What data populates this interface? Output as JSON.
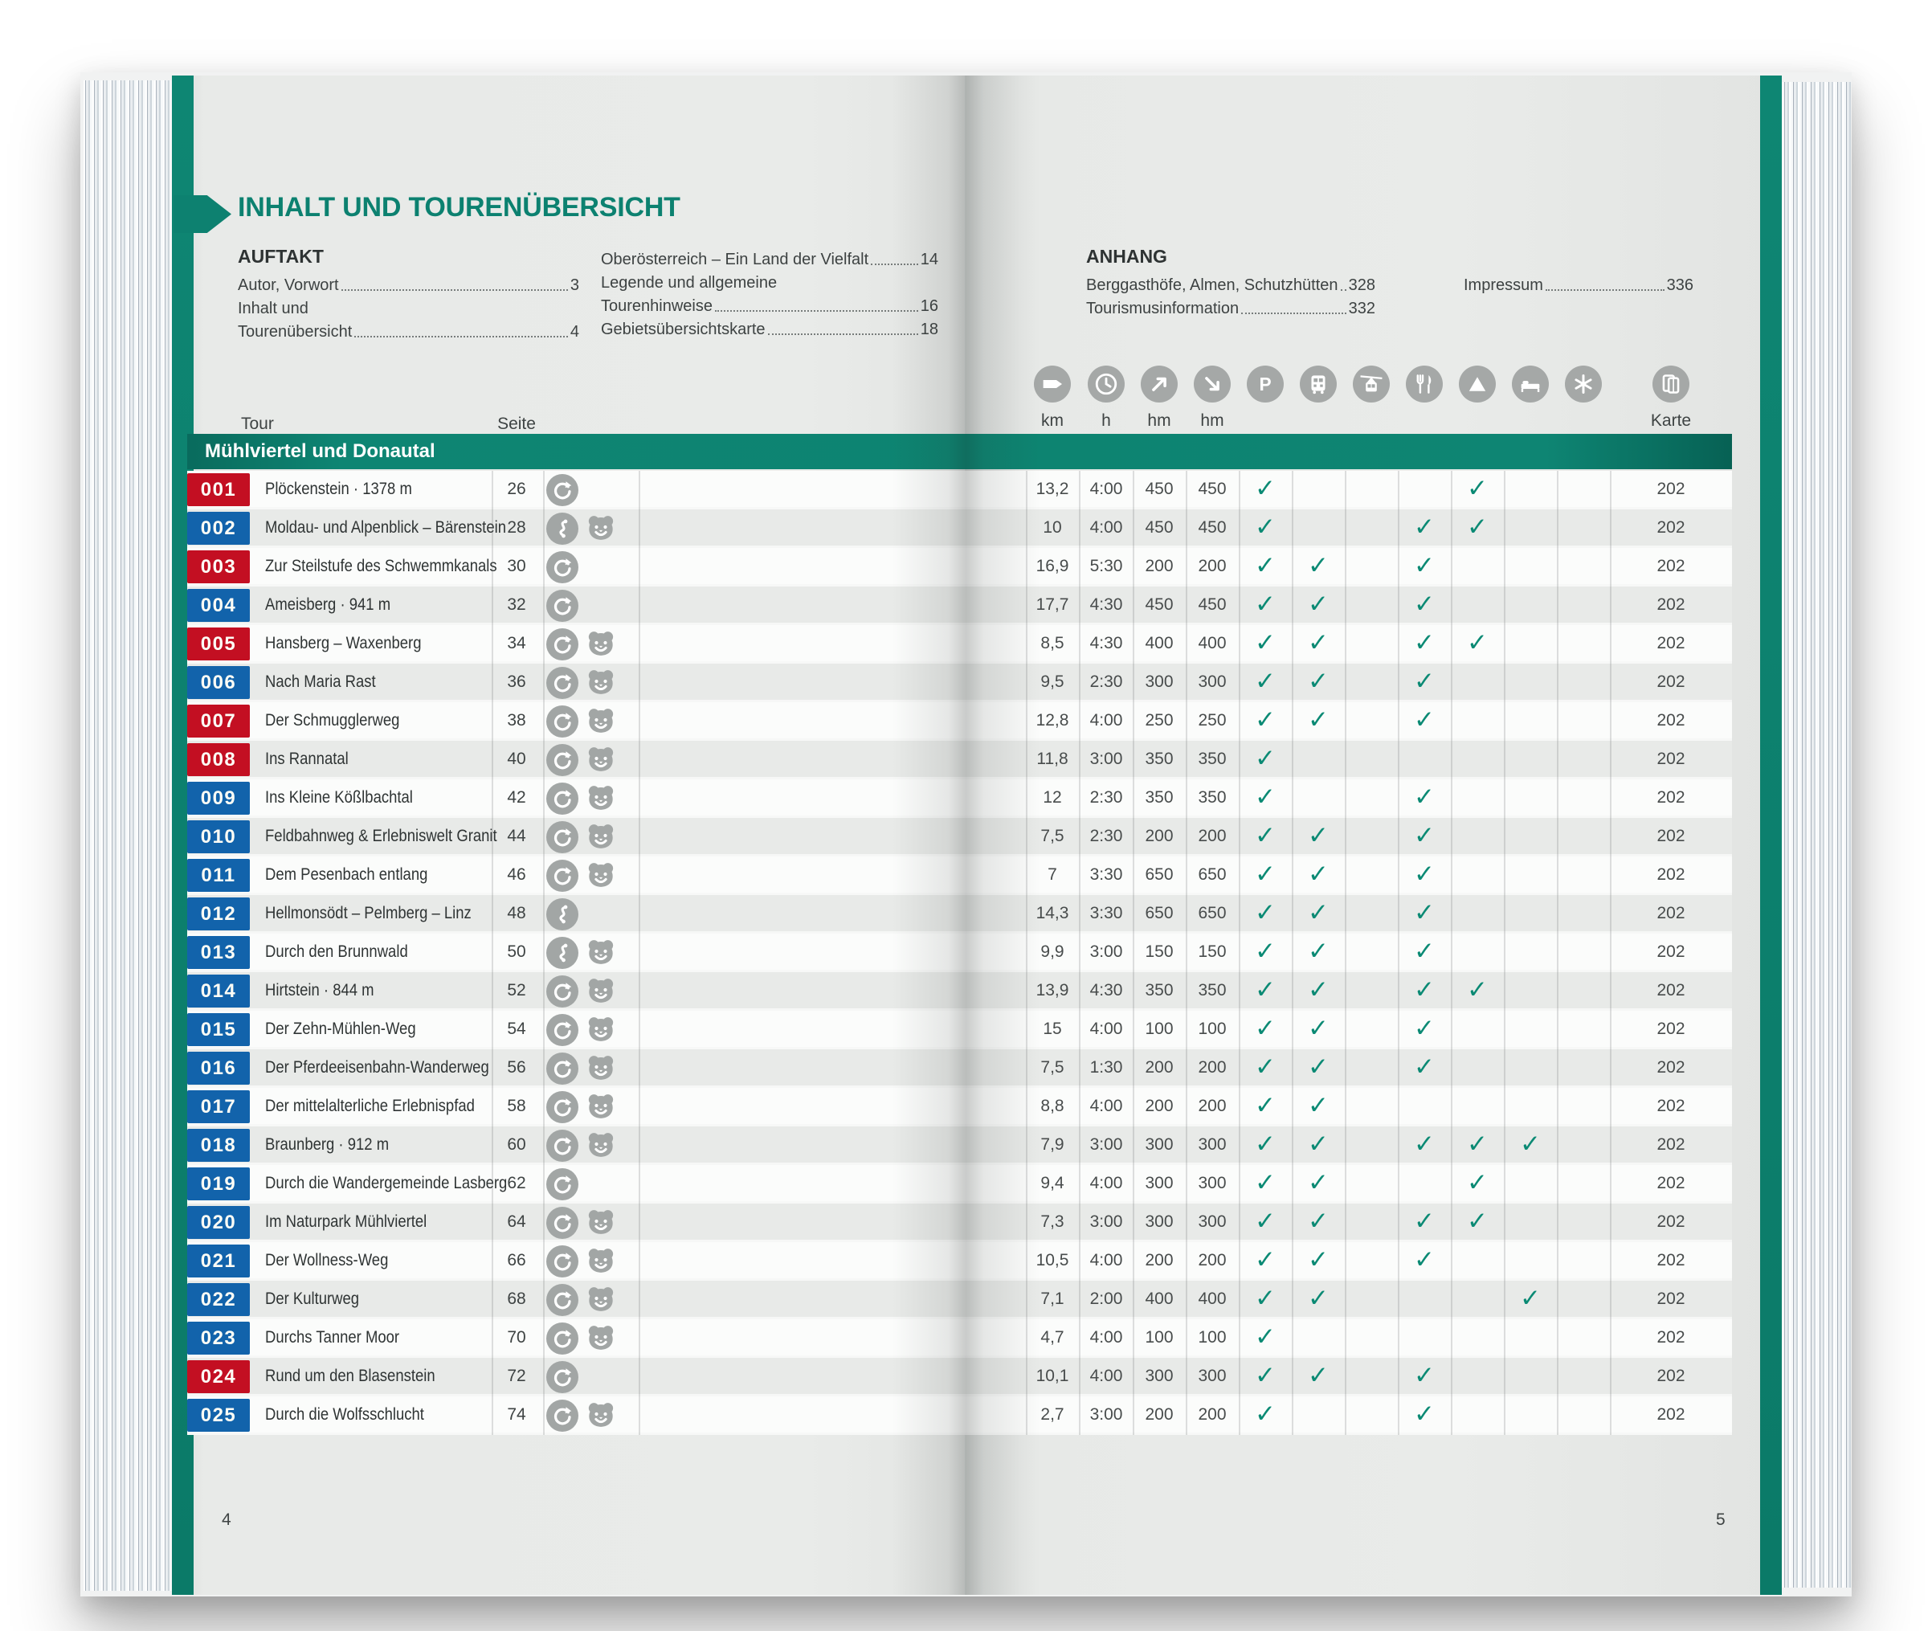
{
  "page": {
    "title": "INHALT UND TOURENÜBERSICHT",
    "left_folio": "4",
    "right_folio": "5"
  },
  "toc": {
    "auftakt": {
      "heading": "AUFTAKT",
      "col1": [
        {
          "label": "Autor, Vorwort",
          "page": "3"
        },
        {
          "label": "Inhalt und",
          "page": ""
        },
        {
          "label": "Tourenübersicht",
          "page": "4"
        }
      ],
      "col2": [
        {
          "label": "Oberösterreich – Ein Land der Vielfalt",
          "page": "14"
        },
        {
          "label": "Legende und allgemeine",
          "page": ""
        },
        {
          "label": "Tourenhinweise",
          "page": "16"
        },
        {
          "label": "Gebietsübersichtskarte",
          "page": "18"
        }
      ]
    },
    "anhang": {
      "heading": "ANHANG",
      "col1": [
        {
          "label": "Berggasthöfe, Almen, Schutzhütten",
          "page": "328"
        },
        {
          "label": "Tourismusinformation",
          "page": "332"
        }
      ],
      "col2": [
        {
          "label": "Impressum",
          "page": "336"
        }
      ]
    }
  },
  "table": {
    "tour_col_label": "Tour",
    "seite_col_label": "Seite",
    "metric_labels": [
      "km",
      "h",
      "hm",
      "hm"
    ],
    "karte_label": "Karte",
    "header_icons": [
      "signpost",
      "clock",
      "arrow-up",
      "arrow-down",
      "parking",
      "bus",
      "cablecar",
      "restaurant",
      "peak",
      "bed",
      "snowflake",
      "map"
    ],
    "check_columns": [
      "parking",
      "bus",
      "cablecar",
      "restaurant",
      "peak",
      "bed",
      "snowflake"
    ],
    "section_title": "Mühlviertel und Donautal",
    "rows": [
      {
        "num": "001",
        "badge": "red",
        "name": "Plöckenstein · 1378 m",
        "seite": "26",
        "type": "loop",
        "family": false,
        "km": "13,2",
        "h": "4:00",
        "hm_up": "450",
        "hm_down": "450",
        "checks": [
          "parking",
          "peak"
        ],
        "karte": "202"
      },
      {
        "num": "002",
        "badge": "blue",
        "name": "Moldau- und Alpenblick – Bärenstein",
        "seite": "28",
        "type": "route",
        "family": true,
        "km": "10",
        "h": "4:00",
        "hm_up": "450",
        "hm_down": "450",
        "checks": [
          "parking",
          "restaurant",
          "peak"
        ],
        "karte": "202"
      },
      {
        "num": "003",
        "badge": "red",
        "name": "Zur Steilstufe des Schwemmkanals",
        "seite": "30",
        "type": "loop",
        "family": false,
        "km": "16,9",
        "h": "5:30",
        "hm_up": "200",
        "hm_down": "200",
        "checks": [
          "parking",
          "bus",
          "restaurant"
        ],
        "karte": "202"
      },
      {
        "num": "004",
        "badge": "blue",
        "name": "Ameisberg · 941 m",
        "seite": "32",
        "type": "loop",
        "family": false,
        "km": "17,7",
        "h": "4:30",
        "hm_up": "450",
        "hm_down": "450",
        "checks": [
          "parking",
          "bus",
          "restaurant"
        ],
        "karte": "202"
      },
      {
        "num": "005",
        "badge": "red",
        "name": "Hansberg – Waxenberg",
        "seite": "34",
        "type": "loop",
        "family": true,
        "km": "8,5",
        "h": "4:30",
        "hm_up": "400",
        "hm_down": "400",
        "checks": [
          "parking",
          "bus",
          "restaurant",
          "peak"
        ],
        "karte": "202"
      },
      {
        "num": "006",
        "badge": "blue",
        "name": "Nach Maria Rast",
        "seite": "36",
        "type": "loop",
        "family": true,
        "km": "9,5",
        "h": "2:30",
        "hm_up": "300",
        "hm_down": "300",
        "checks": [
          "parking",
          "bus",
          "restaurant"
        ],
        "karte": "202"
      },
      {
        "num": "007",
        "badge": "red",
        "name": "Der Schmugglerweg",
        "seite": "38",
        "type": "loop",
        "family": true,
        "km": "12,8",
        "h": "4:00",
        "hm_up": "250",
        "hm_down": "250",
        "checks": [
          "parking",
          "bus",
          "restaurant"
        ],
        "karte": "202"
      },
      {
        "num": "008",
        "badge": "red",
        "name": "Ins Rannatal",
        "seite": "40",
        "type": "loop",
        "family": true,
        "km": "11,8",
        "h": "3:00",
        "hm_up": "350",
        "hm_down": "350",
        "checks": [
          "parking"
        ],
        "karte": "202"
      },
      {
        "num": "009",
        "badge": "blue",
        "name": "Ins Kleine Kößlbachtal",
        "seite": "42",
        "type": "loop",
        "family": true,
        "km": "12",
        "h": "2:30",
        "hm_up": "350",
        "hm_down": "350",
        "checks": [
          "parking",
          "restaurant"
        ],
        "karte": "202"
      },
      {
        "num": "010",
        "badge": "blue",
        "name": "Feldbahnweg & Erlebniswelt Granit",
        "seite": "44",
        "type": "loop",
        "family": true,
        "km": "7,5",
        "h": "2:30",
        "hm_up": "200",
        "hm_down": "200",
        "checks": [
          "parking",
          "bus",
          "restaurant"
        ],
        "karte": "202"
      },
      {
        "num": "011",
        "badge": "blue",
        "name": "Dem Pesenbach entlang",
        "seite": "46",
        "type": "loop",
        "family": true,
        "km": "7",
        "h": "3:30",
        "hm_up": "650",
        "hm_down": "650",
        "checks": [
          "parking",
          "bus",
          "restaurant"
        ],
        "karte": "202"
      },
      {
        "num": "012",
        "badge": "blue",
        "name": "Hellmonsödt – Pelmberg – Linz",
        "seite": "48",
        "type": "route",
        "family": false,
        "km": "14,3",
        "h": "3:30",
        "hm_up": "650",
        "hm_down": "650",
        "checks": [
          "parking",
          "bus",
          "restaurant"
        ],
        "karte": "202"
      },
      {
        "num": "013",
        "badge": "blue",
        "name": "Durch den Brunnwald",
        "seite": "50",
        "type": "route",
        "family": true,
        "km": "9,9",
        "h": "3:00",
        "hm_up": "150",
        "hm_down": "150",
        "checks": [
          "parking",
          "bus",
          "restaurant"
        ],
        "karte": "202"
      },
      {
        "num": "014",
        "badge": "blue",
        "name": "Hirtstein · 844 m",
        "seite": "52",
        "type": "loop",
        "family": true,
        "km": "13,9",
        "h": "4:30",
        "hm_up": "350",
        "hm_down": "350",
        "checks": [
          "parking",
          "bus",
          "restaurant",
          "peak"
        ],
        "karte": "202"
      },
      {
        "num": "015",
        "badge": "blue",
        "name": "Der Zehn-Mühlen-Weg",
        "seite": "54",
        "type": "loop",
        "family": true,
        "km": "15",
        "h": "4:00",
        "hm_up": "100",
        "hm_down": "100",
        "checks": [
          "parking",
          "bus",
          "restaurant"
        ],
        "karte": "202"
      },
      {
        "num": "016",
        "badge": "blue",
        "name": "Der Pferdeeisenbahn-Wanderweg",
        "seite": "56",
        "type": "loop",
        "family": true,
        "km": "7,5",
        "h": "1:30",
        "hm_up": "200",
        "hm_down": "200",
        "checks": [
          "parking",
          "bus",
          "restaurant"
        ],
        "karte": "202"
      },
      {
        "num": "017",
        "badge": "blue",
        "name": "Der mittelalterliche Erlebnispfad",
        "seite": "58",
        "type": "loop",
        "family": true,
        "km": "8,8",
        "h": "4:00",
        "hm_up": "200",
        "hm_down": "200",
        "checks": [
          "parking",
          "bus"
        ],
        "karte": "202"
      },
      {
        "num": "018",
        "badge": "blue",
        "name": "Braunberg · 912 m",
        "seite": "60",
        "type": "loop",
        "family": true,
        "km": "7,9",
        "h": "3:00",
        "hm_up": "300",
        "hm_down": "300",
        "checks": [
          "parking",
          "bus",
          "restaurant",
          "peak",
          "bed"
        ],
        "karte": "202"
      },
      {
        "num": "019",
        "badge": "blue",
        "name": "Durch die Wandergemeinde Lasberg",
        "seite": "62",
        "type": "loop",
        "family": false,
        "km": "9,4",
        "h": "4:00",
        "hm_up": "300",
        "hm_down": "300",
        "checks": [
          "parking",
          "bus",
          "peak"
        ],
        "karte": "202"
      },
      {
        "num": "020",
        "badge": "blue",
        "name": "Im Naturpark Mühlviertel",
        "seite": "64",
        "type": "loop",
        "family": true,
        "km": "7,3",
        "h": "3:00",
        "hm_up": "300",
        "hm_down": "300",
        "checks": [
          "parking",
          "bus",
          "restaurant",
          "peak"
        ],
        "karte": "202"
      },
      {
        "num": "021",
        "badge": "blue",
        "name": "Der Wollness-Weg",
        "seite": "66",
        "type": "loop",
        "family": true,
        "km": "10,5",
        "h": "4:00",
        "hm_up": "200",
        "hm_down": "200",
        "checks": [
          "parking",
          "bus",
          "restaurant"
        ],
        "karte": "202"
      },
      {
        "num": "022",
        "badge": "blue",
        "name": "Der Kulturweg",
        "seite": "68",
        "type": "loop",
        "family": true,
        "km": "7,1",
        "h": "2:00",
        "hm_up": "400",
        "hm_down": "400",
        "checks": [
          "parking",
          "bus",
          "bed"
        ],
        "karte": "202"
      },
      {
        "num": "023",
        "badge": "blue",
        "name": "Durchs Tanner Moor",
        "seite": "70",
        "type": "loop",
        "family": true,
        "km": "4,7",
        "h": "4:00",
        "hm_up": "100",
        "hm_down": "100",
        "checks": [
          "parking"
        ],
        "karte": "202"
      },
      {
        "num": "024",
        "badge": "red",
        "name": "Rund um den Blasenstein",
        "seite": "72",
        "type": "loop",
        "family": false,
        "km": "10,1",
        "h": "4:00",
        "hm_up": "300",
        "hm_down": "300",
        "checks": [
          "parking",
          "bus",
          "restaurant"
        ],
        "karte": "202"
      },
      {
        "num": "025",
        "badge": "blue",
        "name": "Durch die Wolfsschlucht",
        "seite": "74",
        "type": "loop",
        "family": true,
        "km": "2,7",
        "h": "3:00",
        "hm_up": "200",
        "hm_down": "200",
        "checks": [
          "parking",
          "restaurant"
        ],
        "karte": "202"
      }
    ]
  },
  "colors": {
    "teal": "#0d8170",
    "section_band": "#0e8573",
    "badge_red": "#c30f22",
    "badge_blue": "#1263ab",
    "check": "#0b8a74",
    "icon_gray": "#a2a6a5"
  }
}
